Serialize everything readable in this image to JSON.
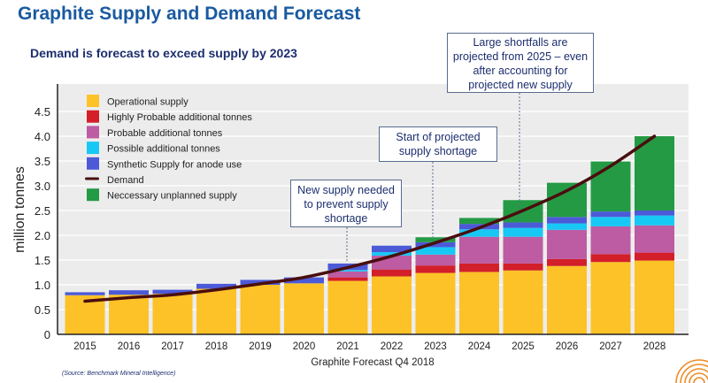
{
  "title": "Graphite Supply and Demand Forecast",
  "subtitle": "Demand is forecast to exceed supply by 2023",
  "source": "(Source:  Benchmark Mineral Intelligence)",
  "callouts": [
    "Large shortfalls are projected from 2025 – even after accounting for projected new supply",
    "Start of projected supply shortage",
    "New supply needed to prevent supply shortage"
  ],
  "chart_data": {
    "type": "bar",
    "stacked": true,
    "title": "",
    "xlabel": "Graphite Forecast Q4 2018",
    "ylabel": "million tonnes",
    "ylim": [
      0,
      4.8
    ],
    "yticks": [
      "0",
      "0.5",
      "1.0",
      "1.5",
      "2.0",
      "2.5",
      "3.0",
      "3.5",
      "4.0",
      "4.5"
    ],
    "grid": true,
    "legend_position": "top-left",
    "categories": [
      "2015",
      "2016",
      "2017",
      "2018",
      "2019",
      "2020",
      "2021",
      "2022",
      "2023",
      "2024",
      "2025",
      "2026",
      "2027",
      "2028"
    ],
    "series": [
      {
        "name": "Operational supply",
        "color": "#fcc227",
        "values": [
          0.79,
          0.8,
          0.82,
          0.92,
          1.0,
          1.03,
          1.08,
          1.17,
          1.24,
          1.26,
          1.29,
          1.38,
          1.46,
          1.49
        ]
      },
      {
        "name": "Highly Probable additional tonnes",
        "color": "#d21f2a",
        "values": [
          0,
          0,
          0,
          0,
          0,
          0,
          0.07,
          0.14,
          0.15,
          0.17,
          0.14,
          0.14,
          0.16,
          0.16
        ]
      },
      {
        "name": "Probable additional tonnes",
        "color": "#bd5ba3",
        "values": [
          0,
          0,
          0,
          0,
          0,
          0,
          0.12,
          0.28,
          0.22,
          0.54,
          0.54,
          0.59,
          0.56,
          0.55
        ]
      },
      {
        "name": "Possible additional tonnes",
        "color": "#18c8f4",
        "values": [
          0,
          0,
          0,
          0,
          0,
          0,
          0.03,
          0.07,
          0.15,
          0.15,
          0.18,
          0.13,
          0.19,
          0.2
        ]
      },
      {
        "name": "Synthetic Supply for anode use",
        "color": "#4c5ad8",
        "values": [
          0.06,
          0.09,
          0.08,
          0.1,
          0.1,
          0.12,
          0.13,
          0.13,
          0.1,
          0.11,
          0.11,
          0.13,
          0.11,
          0.1
        ]
      },
      {
        "name": "Neccessary unplanned supply",
        "color": "#249a45",
        "values": [
          0,
          0,
          0,
          0,
          0,
          0,
          0,
          0,
          0.1,
          0.12,
          0.45,
          0.69,
          1.01,
          1.5
        ]
      }
    ],
    "line_series": {
      "name": "Demand",
      "color": "#4a0e0e",
      "values": [
        0.67,
        0.74,
        0.8,
        0.9,
        1.02,
        1.15,
        1.35,
        1.58,
        1.85,
        2.15,
        2.5,
        2.9,
        3.4,
        4.0
      ]
    },
    "legend_order": [
      "Operational supply",
      "Highly Probable additional tonnes",
      "Probable additional tonnes",
      "Possible additional tonnes",
      "Synthetic Supply for anode use",
      "Demand",
      "Neccessary unplanned supply"
    ]
  }
}
